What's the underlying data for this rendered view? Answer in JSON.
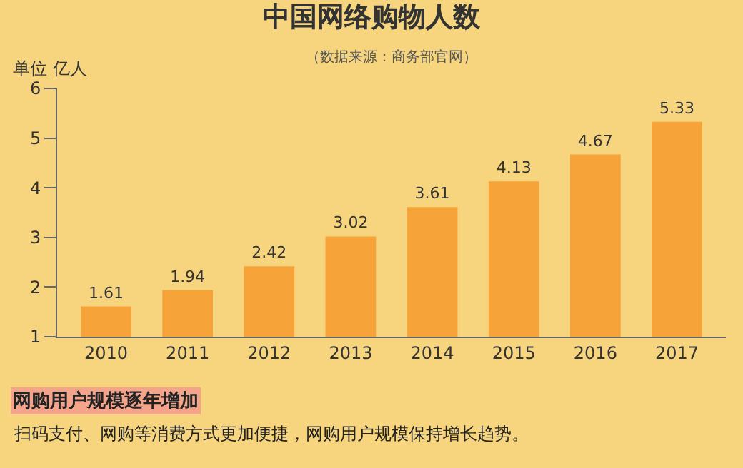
{
  "chart_data": {
    "type": "bar",
    "title": "中国网络购物人数",
    "subtitle": "（数据来源：商务部官网）",
    "ylabel": "单位 亿人",
    "categories": [
      "2010",
      "2011",
      "2012",
      "2013",
      "2014",
      "2015",
      "2016",
      "2017"
    ],
    "values": [
      1.61,
      1.94,
      2.42,
      3.02,
      3.61,
      4.13,
      4.67,
      5.33
    ],
    "color": "#f6a33a",
    "ylim": [
      1,
      6
    ],
    "yticks": [
      1,
      2,
      3,
      4,
      5,
      6
    ],
    "grid": false,
    "data_labels": true,
    "annotations": [
      "网购用户规模逐年增加",
      "扫码支付、网购等消费方式更加便捷，网购用户规模保持增长趋势。"
    ]
  }
}
